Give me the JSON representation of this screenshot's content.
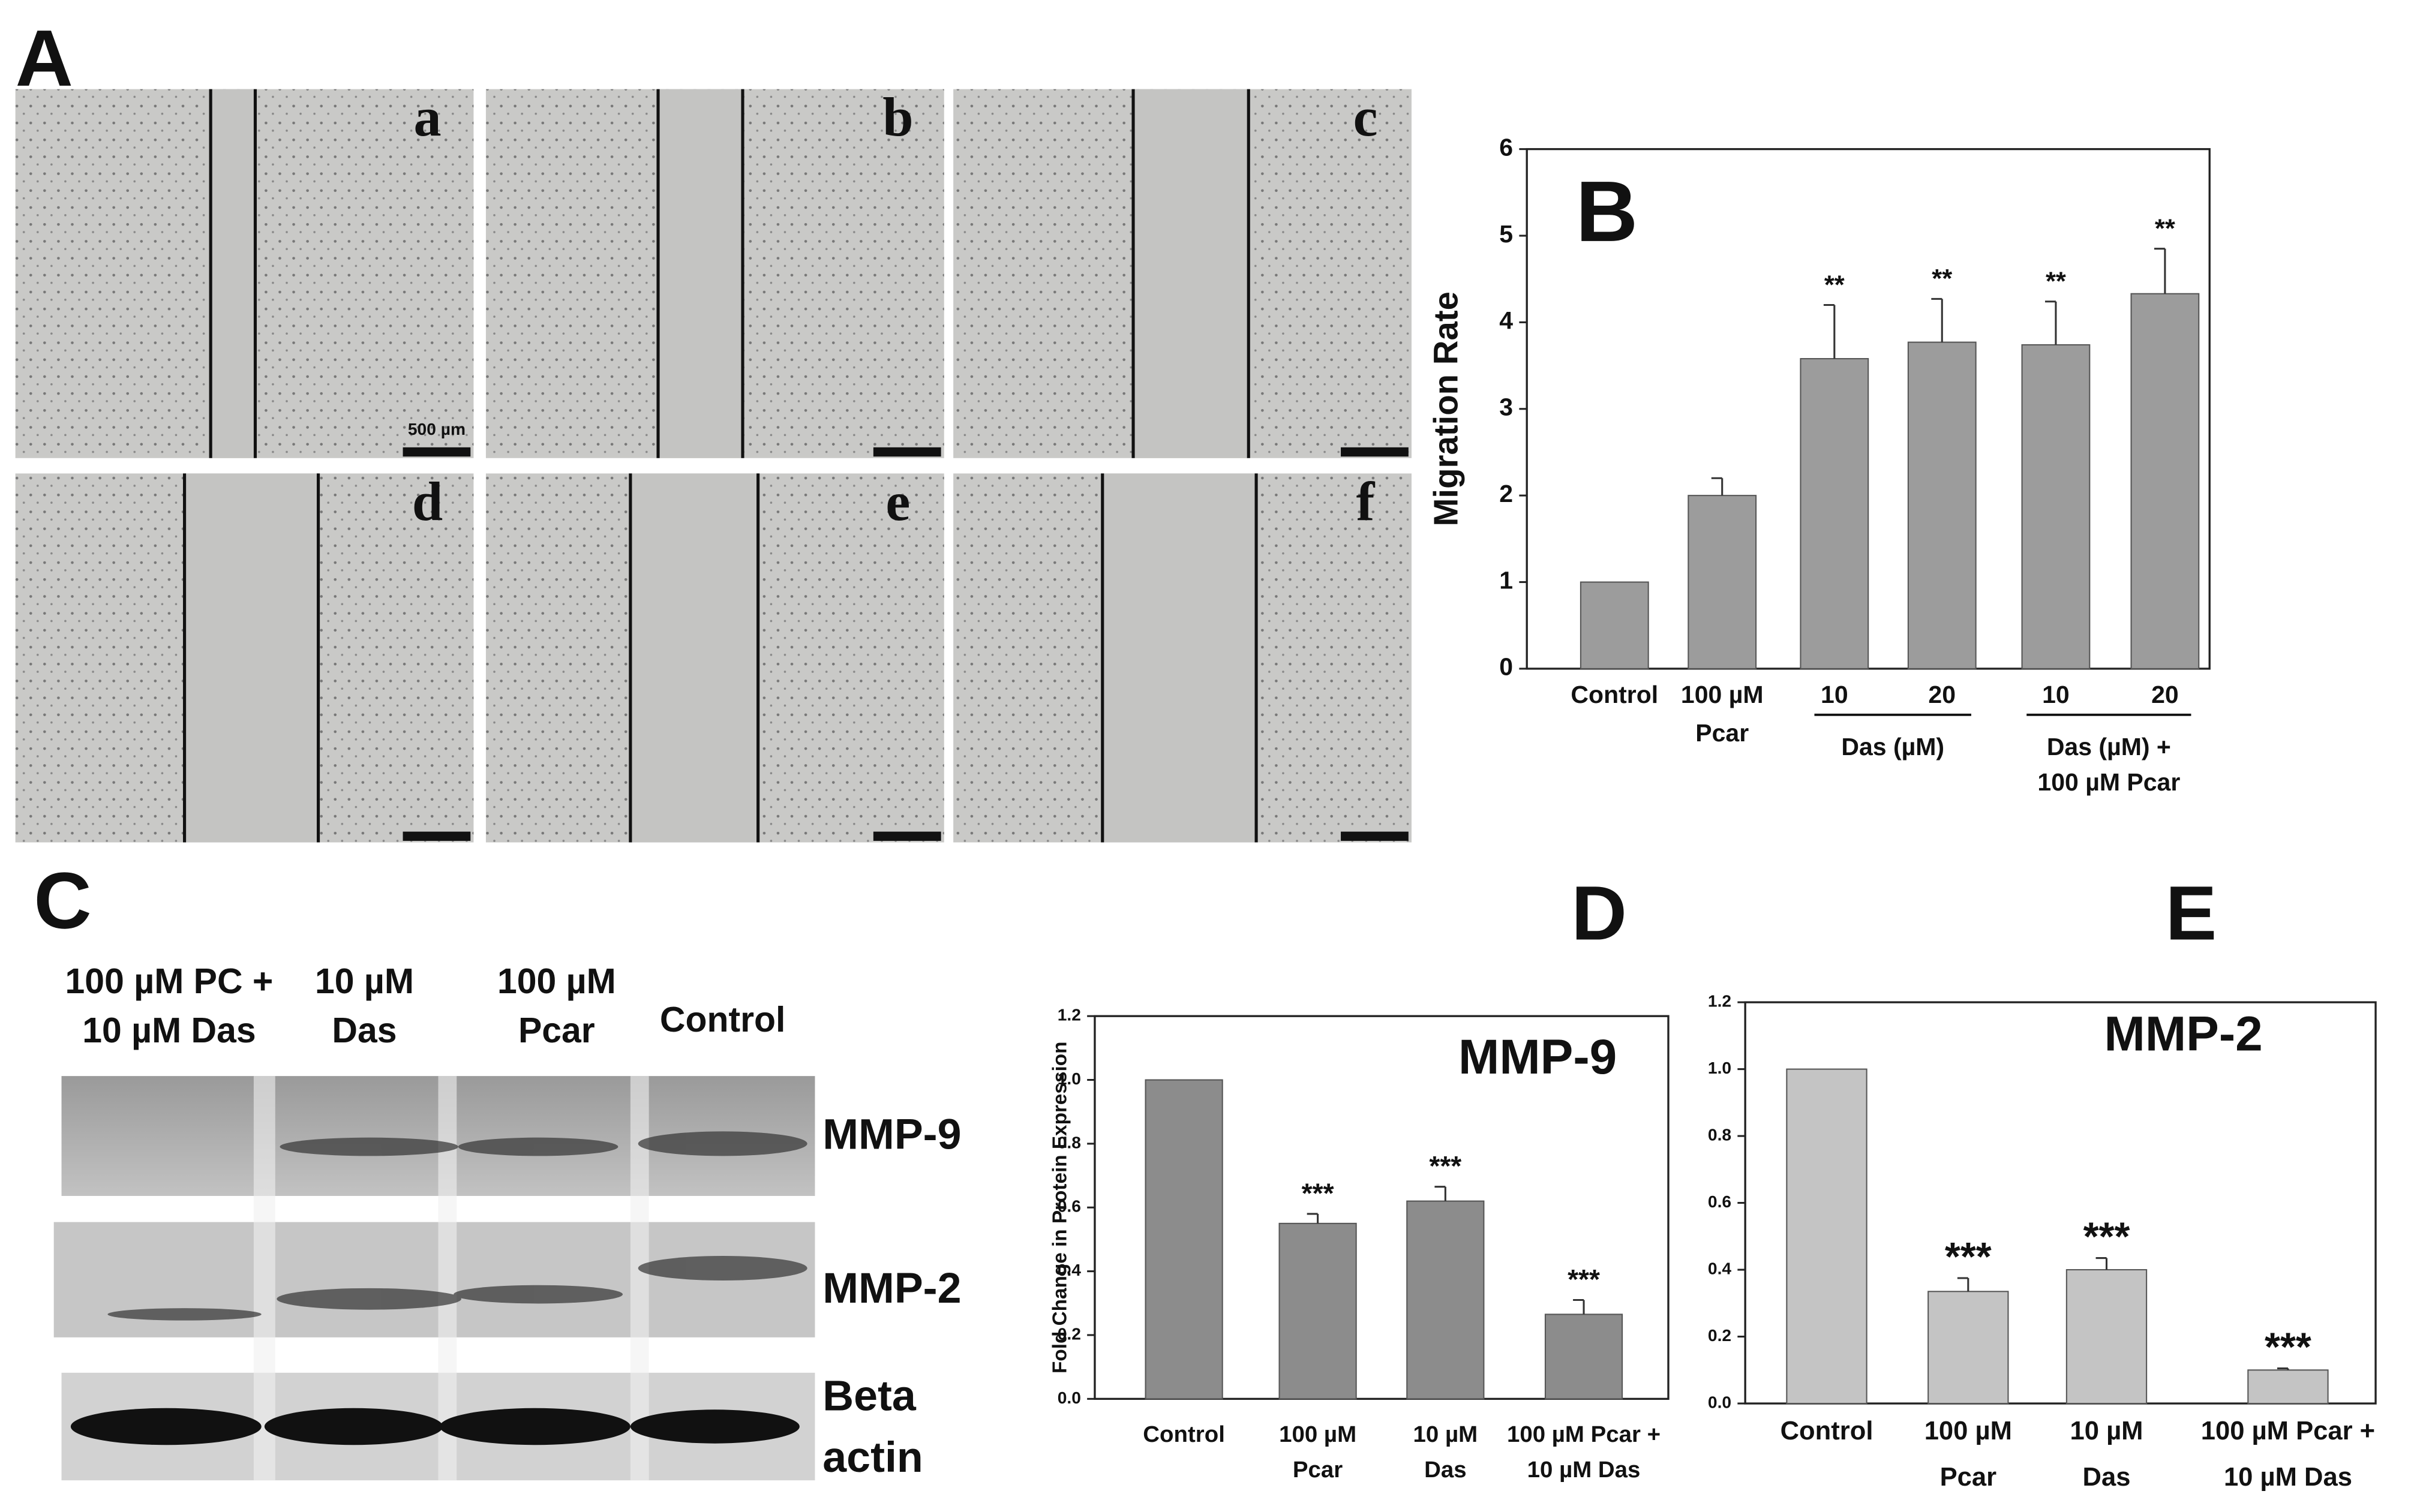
{
  "panel_a": {
    "label": "A",
    "images": [
      "a",
      "b",
      "c",
      "d",
      "e",
      "f"
    ],
    "scale_bar": "500 µm"
  },
  "panel_c": {
    "label": "C",
    "lanes": [
      [
        "100 µM PC +",
        "10 µM Das"
      ],
      [
        "10 µM",
        "Das"
      ],
      [
        "100 µM",
        "Pcar"
      ],
      [
        "Control"
      ]
    ],
    "bands": [
      [
        "MMP-9"
      ],
      [
        "MMP-2"
      ],
      [
        "Beta",
        "actin"
      ]
    ]
  },
  "chart_data": [
    {
      "type": "bar",
      "panel_label": "B",
      "y_label": "Migration Rate",
      "categories": [
        [
          "Control"
        ],
        [
          "100 µM",
          "Pcar"
        ],
        [
          "10"
        ],
        [
          "20"
        ],
        [
          "10"
        ],
        [
          "20"
        ]
      ],
      "group_labels": [
        [
          "Das (µM)"
        ],
        [
          "Das (µM) +",
          "100 µM Pcar"
        ]
      ],
      "values": [
        1,
        2.0,
        3.58,
        3.77,
        3.74,
        4.33
      ],
      "errors": [
        null,
        0.2,
        0.62,
        0.5,
        0.5,
        0.52
      ],
      "annotations": [
        null,
        null,
        "**",
        "**",
        "**",
        "**"
      ],
      "color": "#9c9c9c",
      "ylim": [
        0,
        6
      ],
      "yticks": [
        0,
        1,
        2,
        3,
        4,
        5,
        6
      ]
    },
    {
      "type": "bar",
      "panel_label": "D",
      "title": "MMP-9",
      "y_label": "Fold Change in Protein Expression",
      "categories": [
        [
          "Control"
        ],
        [
          "100 µM",
          "Pcar"
        ],
        [
          "10 µM",
          "Das"
        ],
        [
          "100 µM Pcar +",
          "10 µM Das"
        ]
      ],
      "values": [
        1,
        0.55,
        0.62,
        0.265
      ],
      "errors": [
        null,
        0.03,
        0.045,
        0.045
      ],
      "annotations": [
        null,
        "***",
        "***",
        "***"
      ],
      "color": "#8c8c8c",
      "ylim": [
        0,
        1.2
      ],
      "yticks": [
        {
          "value": 0,
          "label": "0.0"
        },
        0.2,
        0.4,
        0.6,
        0.8,
        {
          "value": 1,
          "label": "1.0"
        },
        1.2
      ]
    },
    {
      "type": "bar",
      "panel_label": "E",
      "title": "MMP-2",
      "categories": [
        [
          "Control"
        ],
        [
          "100 µM",
          "Pcar"
        ],
        [
          "10 µM",
          "Das"
        ],
        [
          "100 µM Pcar +",
          "10 µM Das"
        ]
      ],
      "values": [
        1,
        0.335,
        0.4,
        0.1
      ],
      "errors": [
        null,
        0.04,
        0.035,
        0.005
      ],
      "annotations": [
        null,
        "***",
        "***",
        "***"
      ],
      "color": "#c4c4c4",
      "ylim": [
        0,
        1.2
      ],
      "yticks": [
        {
          "value": 0,
          "label": "0.0"
        },
        0.2,
        0.4,
        0.6,
        0.8,
        {
          "value": 1,
          "label": "1.0"
        },
        1.2
      ]
    }
  ]
}
